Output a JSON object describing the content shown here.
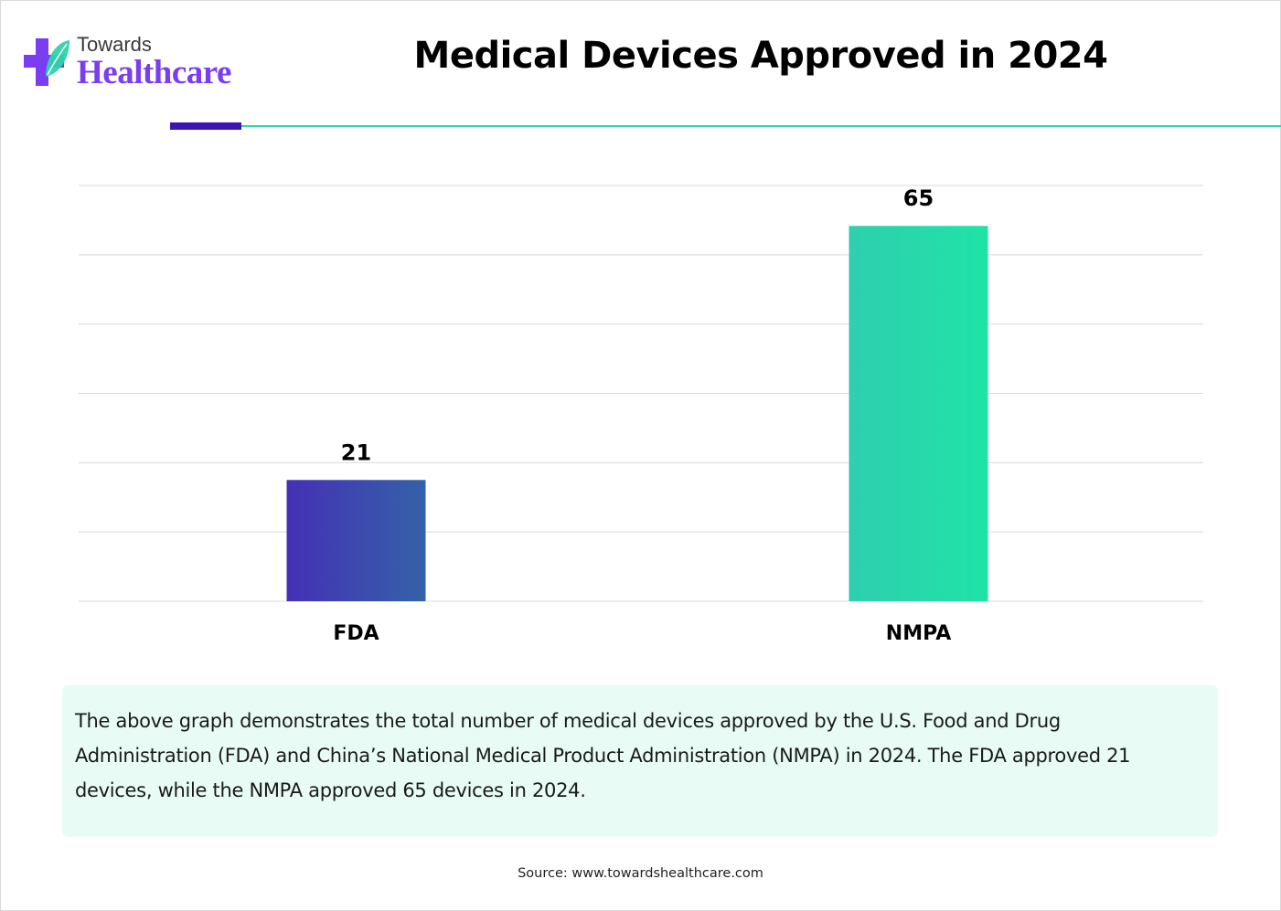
{
  "logo": {
    "line1": "Towards",
    "line2": "Healthcare",
    "colors": {
      "cross": "#7a3df2",
      "leaf": "#2dd4aa",
      "text": "#7a3df2"
    }
  },
  "chart_data": {
    "type": "bar",
    "title": "Medical Devices Approved in 2024",
    "categories": [
      "FDA",
      "NMPA"
    ],
    "values": [
      21,
      65
    ],
    "data_labels": [
      "21",
      "65"
    ],
    "xlabel": "",
    "ylabel": "",
    "ylim": [
      0,
      72
    ],
    "gridlines": [
      0,
      12,
      24,
      36,
      48,
      60,
      72
    ],
    "grid": true,
    "colors": [
      {
        "from": "#4530b5",
        "to": "#3462a8"
      },
      {
        "from": "#2ecfae",
        "to": "#1fe3a6"
      }
    ]
  },
  "theme": {
    "accent": "#3b15b8",
    "rule": "#2dd4aa",
    "note_bg": "#e8fcf5",
    "grid": "#d9d9d9"
  },
  "description": "The above graph demonstrates the total number of medical devices approved by the U.S. Food and Drug Administration (FDA) and China’s National Medical Product Administration (NMPA) in 2024. The FDA approved 21 devices, while the NMPA approved 65 devices in 2024.",
  "source": "Source: www.towardshealthcare.com"
}
